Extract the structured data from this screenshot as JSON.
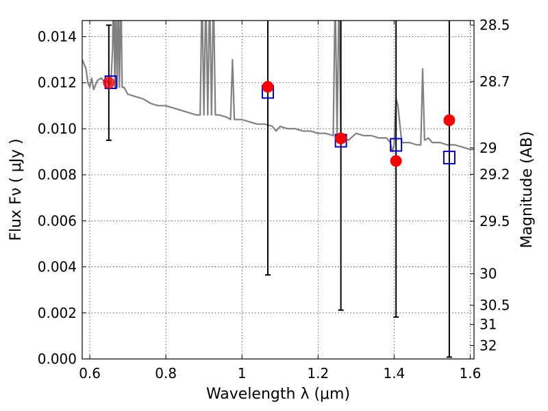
{
  "chart_data": {
    "type": "scatter",
    "title": "",
    "xlabel": "Wavelength  λ (μm)",
    "ylabel": "Flux  Fν  ( μJy )",
    "y2label": "Magnitude (AB)",
    "xlim": [
      0.58,
      1.61
    ],
    "ylim": [
      0.0,
      0.0147
    ],
    "grid": true,
    "x_ticks": [
      {
        "value": 0.6,
        "label": "0.6"
      },
      {
        "value": 0.8,
        "label": "0.8"
      },
      {
        "value": 1.0,
        "label": "1"
      },
      {
        "value": 1.2,
        "label": "1.2"
      },
      {
        "value": 1.4,
        "label": "1.4"
      },
      {
        "value": 1.6,
        "label": "1.6"
      }
    ],
    "y_ticks": [
      {
        "value": 0.0,
        "label": "0.000"
      },
      {
        "value": 0.002,
        "label": "0.002"
      },
      {
        "value": 0.004,
        "label": "0.004"
      },
      {
        "value": 0.006,
        "label": "0.006"
      },
      {
        "value": 0.008,
        "label": "0.008"
      },
      {
        "value": 0.01,
        "label": "0.010"
      },
      {
        "value": 0.012,
        "label": "0.012"
      },
      {
        "value": 0.014,
        "label": "0.014"
      }
    ],
    "y2_ticks": [
      {
        "flux": 0.0145,
        "label": "28.5"
      },
      {
        "flux": 0.01205,
        "label": "28.7"
      },
      {
        "flux": 0.00917,
        "label": "29"
      },
      {
        "flux": 0.00802,
        "label": "29.2"
      },
      {
        "flux": 0.00598,
        "label": "29.5"
      },
      {
        "flux": 0.0037,
        "label": "30"
      },
      {
        "flux": 0.00233,
        "label": "30.5"
      },
      {
        "flux": 0.0015,
        "label": "31"
      },
      {
        "flux": 0.00058,
        "label": "32"
      }
    ],
    "colors": {
      "model": "#808080",
      "observed": "#ff0000",
      "model_photometry": "#0000cc",
      "error_bar": "#000000"
    },
    "series": [
      {
        "type": "line",
        "values_x": [
          0.58,
          0.59,
          0.595,
          0.6,
          0.605,
          0.61,
          0.62,
          0.63,
          0.64,
          0.65,
          0.655,
          0.66,
          0.662,
          0.666,
          0.668,
          0.672,
          0.675,
          0.678,
          0.682,
          0.685,
          0.69,
          0.7,
          0.72,
          0.74,
          0.76,
          0.78,
          0.8,
          0.82,
          0.84,
          0.86,
          0.88,
          0.89,
          0.895,
          0.9,
          0.905,
          0.91,
          0.915,
          0.92,
          0.925,
          0.93,
          0.94,
          0.96,
          0.97,
          0.975,
          0.98,
          0.99,
          1.0,
          1.02,
          1.04,
          1.06,
          1.08,
          1.09,
          1.1,
          1.12,
          1.14,
          1.16,
          1.18,
          1.2,
          1.22,
          1.24,
          1.245,
          1.25,
          1.255,
          1.26,
          1.28,
          1.3,
          1.32,
          1.34,
          1.36,
          1.38,
          1.39,
          1.395,
          1.4,
          1.405,
          1.41,
          1.42,
          1.44,
          1.46,
          1.47,
          1.475,
          1.48,
          1.49,
          1.5,
          1.52,
          1.54,
          1.56,
          1.58,
          1.6,
          1.61
        ],
        "values_y": [
          0.013,
          0.0126,
          0.012,
          0.0118,
          0.0122,
          0.0117,
          0.0121,
          0.0122,
          0.012,
          0.0121,
          0.0119,
          0.0135,
          0.016,
          0.0118,
          0.016,
          0.0118,
          0.016,
          0.0118,
          0.016,
          0.0118,
          0.0118,
          0.0115,
          0.0114,
          0.0113,
          0.0111,
          0.011,
          0.011,
          0.0109,
          0.0108,
          0.0107,
          0.0106,
          0.0106,
          0.016,
          0.0106,
          0.016,
          0.0106,
          0.016,
          0.0106,
          0.016,
          0.0106,
          0.0106,
          0.0105,
          0.0104,
          0.013,
          0.0104,
          0.0104,
          0.0104,
          0.0103,
          0.0102,
          0.0102,
          0.0101,
          0.0099,
          0.0101,
          0.01,
          0.01,
          0.0099,
          0.0099,
          0.0098,
          0.0098,
          0.0097,
          0.016,
          0.0097,
          0.016,
          0.0097,
          0.0095,
          0.0098,
          0.0097,
          0.0097,
          0.0096,
          0.0096,
          0.0094,
          0.009,
          0.0093,
          0.0113,
          0.011,
          0.0094,
          0.0094,
          0.0093,
          0.0093,
          0.0126,
          0.0095,
          0.0096,
          0.0094,
          0.0094,
          0.0093,
          0.0093,
          0.0092,
          0.0091,
          0.0091
        ]
      },
      {
        "type": "errorbar",
        "points": [
          {
            "x": 0.65,
            "y": 0.012,
            "yerr_low": 0.0095,
            "yerr_high": 0.0145
          },
          {
            "x": 1.068,
            "y": 0.01182,
            "yerr_low": 0.00365,
            "yerr_high": 0.016
          },
          {
            "x": 1.26,
            "y": 0.00958,
            "yerr_low": 0.00212,
            "yerr_high": 0.016
          },
          {
            "x": 1.405,
            "y": 0.0086,
            "yerr_low": 0.00182,
            "yerr_high": 0.016
          },
          {
            "x": 1.545,
            "y": 0.01037,
            "yerr_low": 8e-05,
            "yerr_high": 0.016
          }
        ]
      },
      {
        "type": "scatter",
        "marker": "square",
        "points": [
          {
            "x": 0.655,
            "y": 0.01202
          },
          {
            "x": 1.068,
            "y": 0.0116
          },
          {
            "x": 1.26,
            "y": 0.00948
          },
          {
            "x": 1.405,
            "y": 0.0093
          },
          {
            "x": 1.545,
            "y": 0.00875
          }
        ]
      }
    ]
  }
}
